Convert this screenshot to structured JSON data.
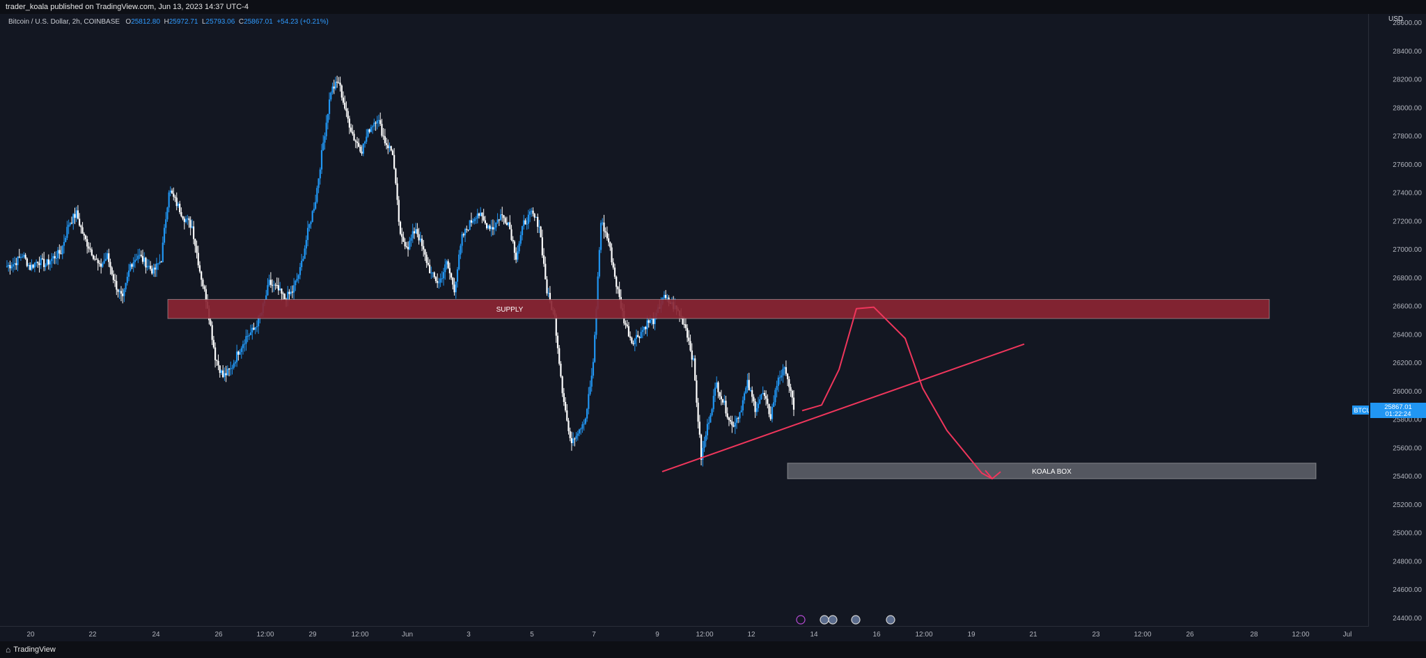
{
  "header": {
    "publisher": "trader_koala published on TradingView.com, Jun 13, 2023 14:37 UTC-4"
  },
  "legend": {
    "symbol": "Bitcoin / U.S. Dollar, 2h, COINBASE",
    "o_label": "O",
    "o": "25812.80",
    "h_label": "H",
    "h": "25972.71",
    "l_label": "L",
    "l": "25793.06",
    "c_label": "C",
    "c": "25867.01",
    "change": "+54.23 (+0.21%)"
  },
  "price_axis": {
    "currency": "USD",
    "ticks": [
      "28600.00",
      "28400.00",
      "28200.00",
      "28000.00",
      "27800.00",
      "27600.00",
      "27400.00",
      "27200.00",
      "27000.00",
      "26800.00",
      "26600.00",
      "26400.00",
      "26200.00",
      "26000.00",
      "25800.00",
      "25600.00",
      "25400.00",
      "25200.00",
      "25000.00",
      "24800.00",
      "24600.00",
      "24400.00"
    ],
    "current_symbol": "BTCUSD",
    "current_price": "25867.01",
    "countdown": "01:22:24"
  },
  "time_axis": {
    "ticks": [
      "20",
      "22",
      "24",
      "26",
      "12:00",
      "29",
      "12:00",
      "Jun",
      "3",
      "5",
      "7",
      "9",
      "12:00",
      "12",
      "14",
      "16",
      "12:00",
      "19",
      "21",
      "23",
      "12:00",
      "26",
      "28",
      "12:00",
      "Jul"
    ]
  },
  "footer": {
    "brand": "TradingView"
  },
  "colors": {
    "background": "#131722",
    "up": "#2196f3",
    "down": "#ffffff",
    "supply_zone": "#8b2533",
    "koala_box": "#5a5d66",
    "annotation": "#f0365c"
  },
  "chart_data": {
    "type": "candlestick",
    "title": "Bitcoin / U.S. Dollar, 2h, COINBASE",
    "ylabel": "USD",
    "ylim": [
      24300,
      28700
    ],
    "x_ticks": [
      "20",
      "22",
      "24",
      "26",
      "12:00",
      "29",
      "12:00",
      "Jun",
      "3",
      "5",
      "7",
      "9",
      "12:00",
      "12",
      "14",
      "16",
      "12:00",
      "19",
      "21",
      "23",
      "12:00",
      "26",
      "28",
      "12:00",
      "Jul"
    ],
    "close_path": [
      26880,
      26900,
      26960,
      26870,
      26920,
      26890,
      26940,
      26980,
      27180,
      27250,
      27080,
      26980,
      26870,
      26950,
      26760,
      26640,
      26890,
      26960,
      26900,
      26840,
      26930,
      27420,
      27320,
      27220,
      27160,
      26850,
      26600,
      26240,
      26100,
      26150,
      26280,
      26380,
      26430,
      26550,
      26760,
      26720,
      26650,
      26700,
      26850,
      27120,
      27350,
      27750,
      28120,
      28180,
      27950,
      27780,
      27700,
      27850,
      27930,
      27760,
      27680,
      27080,
      27020,
      27150,
      26980,
      26820,
      26760,
      26900,
      26720,
      27080,
      27180,
      27260,
      27180,
      27150,
      27240,
      27190,
      26950,
      27180,
      27250,
      27170,
      26700,
      26520,
      26010,
      25640,
      25720,
      25810,
      26180,
      27200,
      27050,
      26750,
      26500,
      26350,
      26400,
      26480,
      26500,
      26660,
      26620,
      26560,
      26450,
      26200,
      25530,
      25800,
      26050,
      25900,
      25750,
      25850,
      26050,
      25880,
      25980,
      25820,
      26100,
      26150,
      25867
    ],
    "series": [
      {
        "name": "SUPPLY",
        "type": "zone",
        "y": [
          26510,
          26645
        ],
        "x_start": "24",
        "x_end": "28"
      },
      {
        "name": "KOALA BOX",
        "type": "zone",
        "y": [
          25380,
          25490
        ],
        "x_start": "13",
        "x_end": "29"
      }
    ],
    "annotations": [
      {
        "label": "SUPPLY",
        "type": "rectangle"
      },
      {
        "label": "KOALA BOX",
        "type": "rectangle"
      },
      {
        "type": "trendline",
        "from": [
          25430,
          "9"
        ],
        "to": [
          26330,
          "20"
        ]
      },
      {
        "type": "projection",
        "path": [
          25860,
          26590,
          26000,
          25380
        ]
      }
    ],
    "grid": false,
    "legend": "top-left"
  }
}
